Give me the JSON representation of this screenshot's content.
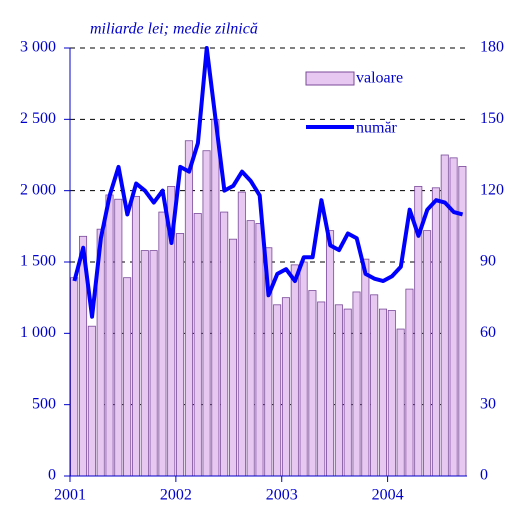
{
  "chart_data": {
    "type": "bar_line",
    "title": "miliarde lei; medie zilnică",
    "categories": [
      "2001",
      null,
      null,
      null,
      null,
      null,
      null,
      null,
      null,
      null,
      null,
      null,
      "2002",
      null,
      null,
      null,
      null,
      null,
      null,
      null,
      null,
      null,
      null,
      null,
      "2003",
      null,
      null,
      null,
      null,
      null,
      null,
      null,
      null,
      null,
      null,
      null,
      "2004",
      null,
      null,
      null,
      null,
      null,
      null,
      null,
      null
    ],
    "series": [
      {
        "name": "valoare",
        "color": "#e6c8f0",
        "axis": "y",
        "values": [
          1390,
          1680,
          1050,
          1730,
          1970,
          1940,
          1390,
          1960,
          1580,
          1580,
          1850,
          2030,
          1700,
          2350,
          1840,
          2280,
          2500,
          1850,
          1660,
          1990,
          1790,
          1770,
          1600,
          1200,
          1250,
          1480,
          1500,
          1300,
          1220,
          1720,
          1200,
          1170,
          1290,
          1520,
          1270,
          1170,
          1160,
          1030,
          1310,
          2030,
          1720,
          2020,
          2250,
          2230,
          2170
        ]
      },
      {
        "name": "număr",
        "color": "#0000ff",
        "axis": "y2",
        "values": [
          82,
          96,
          67,
          100,
          118,
          130,
          110,
          123,
          120,
          115,
          120,
          98,
          130,
          128,
          140,
          180,
          150,
          120,
          122,
          128,
          124,
          118,
          76,
          85,
          87,
          82,
          92,
          92,
          116,
          97,
          95,
          102,
          100,
          85,
          83,
          82,
          84,
          88,
          112,
          101,
          112,
          116,
          115,
          111,
          110
        ]
      }
    ],
    "ylim": [
      0,
      3000
    ],
    "yticks": [
      0,
      500,
      {
        "value": 1000,
        "label": "1 000"
      },
      {
        "value": 1500,
        "label": "1 500"
      },
      {
        "value": 2000,
        "label": "2 000"
      },
      {
        "value": 2500,
        "label": "2 500"
      },
      {
        "value": 3000,
        "label": "3 000"
      }
    ],
    "y2lim": [
      0,
      180
    ],
    "y2ticks": [
      0,
      30,
      60,
      90,
      120,
      150,
      180
    ],
    "grid": true
  }
}
